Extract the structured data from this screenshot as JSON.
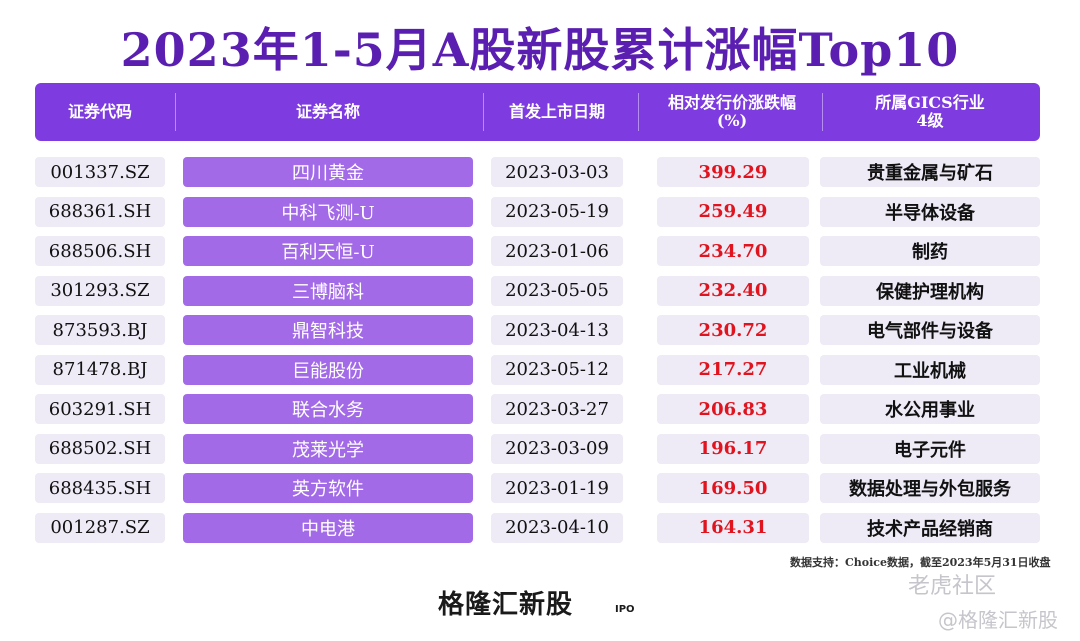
{
  "title": "2023年1-5月A股新股累计涨幅Top10",
  "headers": {
    "code": "证券代码",
    "name": "证券名称",
    "date": "首发上市日期",
    "pct_line1": "相对发行价涨跌幅",
    "pct_line2": "(%)",
    "ind_line1": "所属GICS行业",
    "ind_line2": "4级"
  },
  "rows": [
    {
      "code": "001337.SZ",
      "name": "四川黄金",
      "date": "2023-03-03",
      "pct": "399.29",
      "industry": "贵重金属与矿石"
    },
    {
      "code": "688361.SH",
      "name": "中科飞测-U",
      "date": "2023-05-19",
      "pct": "259.49",
      "industry": "半导体设备"
    },
    {
      "code": "688506.SH",
      "name": "百利天恒-U",
      "date": "2023-01-06",
      "pct": "234.70",
      "industry": "制药"
    },
    {
      "code": "301293.SZ",
      "name": "三博脑科",
      "date": "2023-05-05",
      "pct": "232.40",
      "industry": "保健护理机构"
    },
    {
      "code": "873593.BJ",
      "name": "鼎智科技",
      "date": "2023-04-13",
      "pct": "230.72",
      "industry": "电气部件与设备"
    },
    {
      "code": "871478.BJ",
      "name": "巨能股份",
      "date": "2023-05-12",
      "pct": "217.27",
      "industry": "工业机械"
    },
    {
      "code": "603291.SH",
      "name": "联合水务",
      "date": "2023-03-27",
      "pct": "206.83",
      "industry": "水公用事业"
    },
    {
      "code": "688502.SH",
      "name": "茂莱光学",
      "date": "2023-03-09",
      "pct": "196.17",
      "industry": "电子元件"
    },
    {
      "code": "688435.SH",
      "name": "英方软件",
      "date": "2023-01-19",
      "pct": "169.50",
      "industry": "数据处理与外包服务"
    },
    {
      "code": "001287.SZ",
      "name": "中电港",
      "date": "2023-04-10",
      "pct": "164.31",
      "industry": "技术产品经销商"
    }
  ],
  "source": "数据支持：Choice数据，截至2023年5月31日收盘",
  "logo": "格隆汇新股",
  "logo_sub": "IPO",
  "watermark1": "老虎社区",
  "watermark2": "@格隆汇新股"
}
